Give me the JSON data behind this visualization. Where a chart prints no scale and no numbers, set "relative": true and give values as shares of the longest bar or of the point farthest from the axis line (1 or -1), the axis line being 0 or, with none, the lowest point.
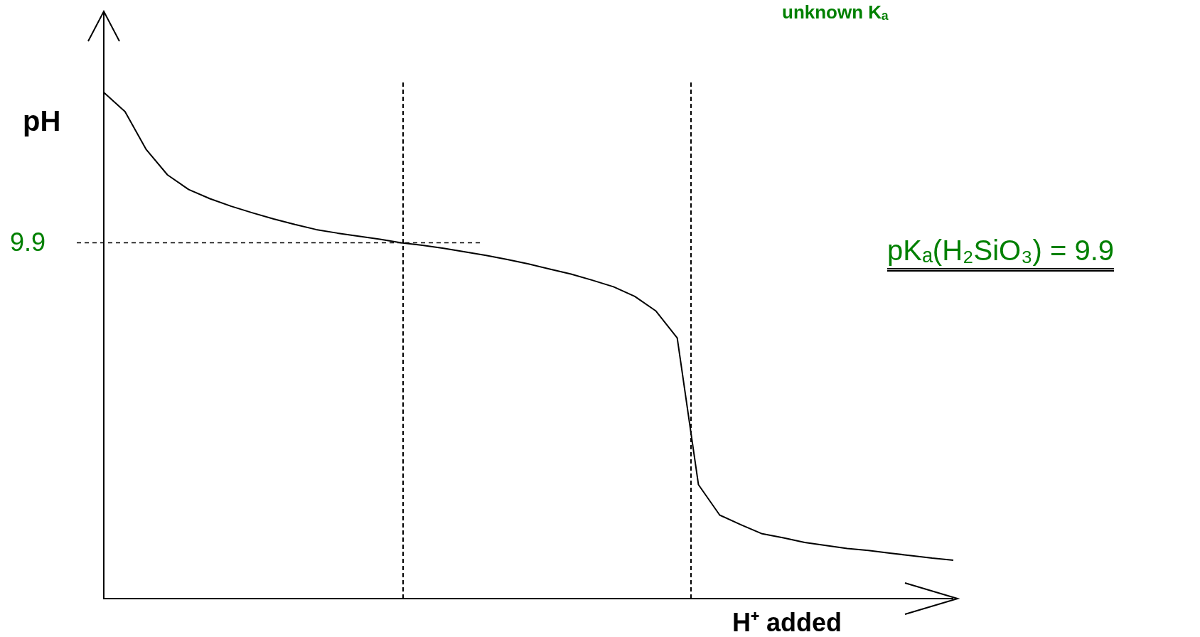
{
  "chart_data": {
    "type": "line",
    "title": "unknown Kₐ",
    "xlabel": "H⁺ added",
    "ylabel": "pH",
    "relative": true,
    "marker": "none",
    "categories": [
      null,
      null,
      null,
      null,
      null,
      null,
      null,
      null,
      null,
      null,
      null,
      null,
      null,
      null,
      null,
      null,
      null,
      null,
      null,
      null,
      null,
      null,
      null,
      null,
      null,
      null,
      null,
      null,
      null,
      null,
      null,
      null,
      null,
      null,
      null,
      null,
      null,
      null,
      null,
      null,
      null
    ],
    "series": [
      {
        "color": "#000000",
        "values": [
          1.0,
          0.962,
          0.887,
          0.837,
          0.808,
          0.79,
          0.775,
          0.762,
          0.75,
          0.739,
          0.729,
          0.722,
          0.716,
          0.71,
          0.703,
          0.698,
          0.692,
          0.685,
          0.678,
          0.67,
          0.661,
          0.651,
          0.641,
          0.629,
          0.616,
          0.597,
          0.568,
          0.515,
          0.225,
          0.165,
          0.146,
          0.128,
          0.12,
          0.111,
          0.105,
          0.099,
          0.095,
          0.09,
          0.085,
          0.08,
          0.076
        ]
      }
    ],
    "ref_lines": [
      {
        "axis": "y",
        "value": 0.703,
        "line_style": "dashed"
      }
    ],
    "annotations": [
      "9.9",
      "pKₐ(H₂SiO₃) = 9.9"
    ]
  }
}
